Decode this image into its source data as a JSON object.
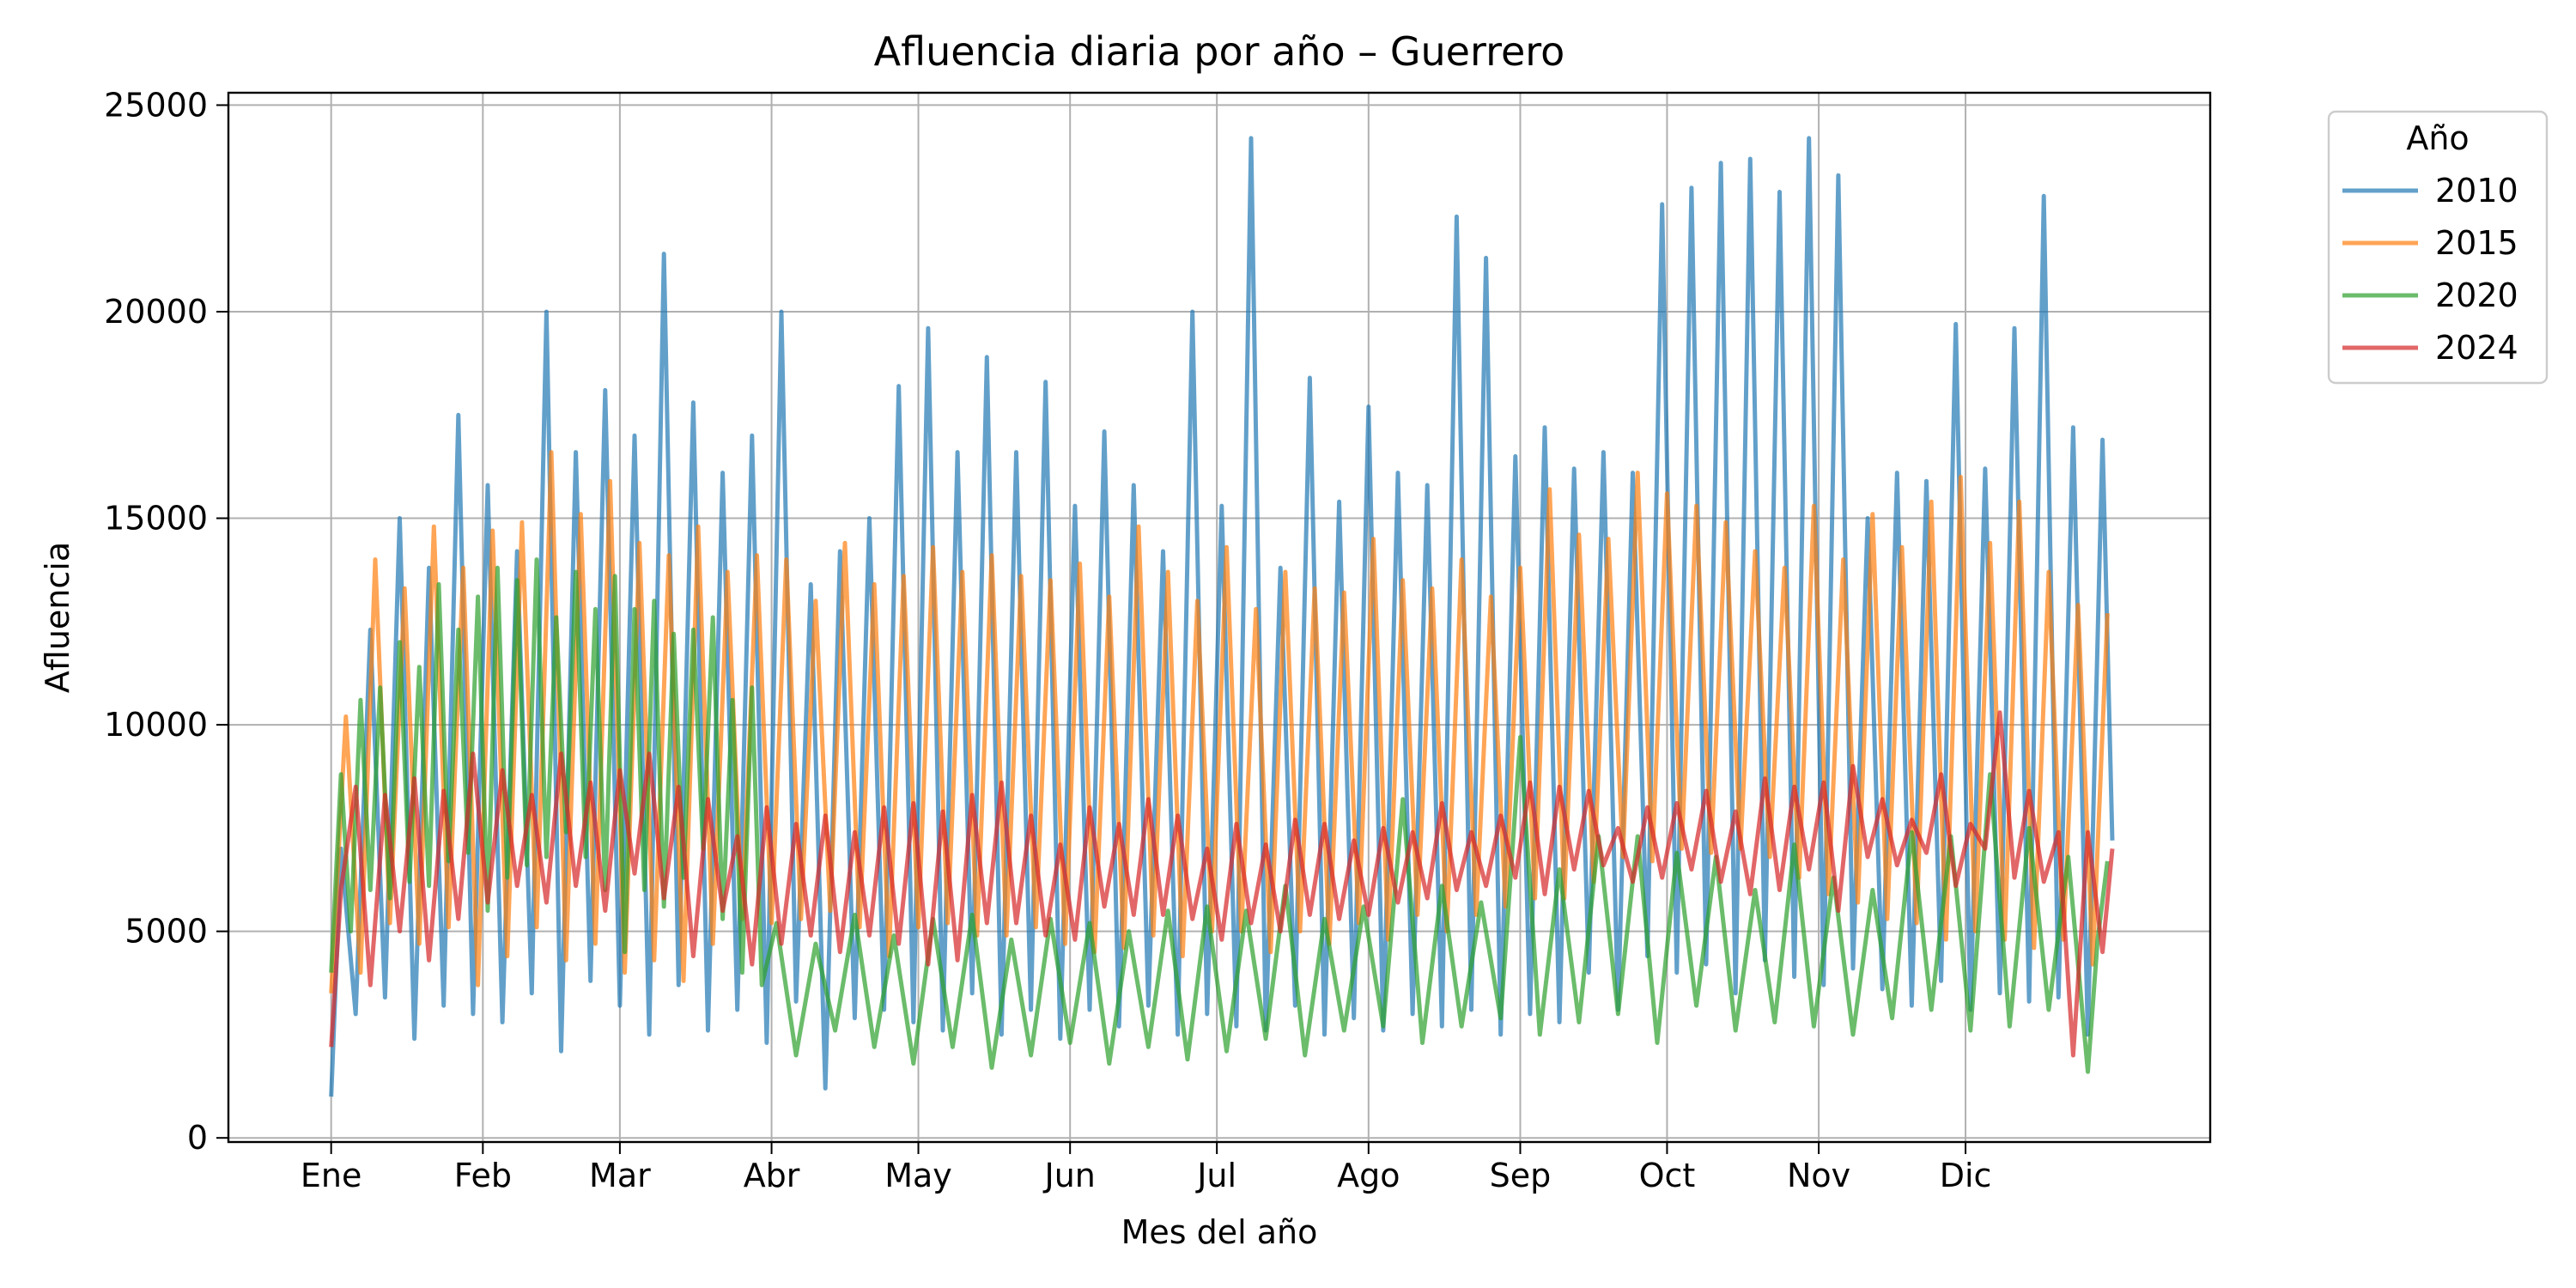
{
  "chart_data": {
    "type": "line",
    "title": "Afluencia diaria por año – Guerrero",
    "xlabel": "Mes del año",
    "ylabel": "Afluencia",
    "x_unit": "day_of_year",
    "xlim": [
      -20,
      385
    ],
    "ylim": [
      -100,
      25300
    ],
    "x_ticks": [
      {
        "day": 1,
        "label": "Ene"
      },
      {
        "day": 32,
        "label": "Feb"
      },
      {
        "day": 60,
        "label": "Mar"
      },
      {
        "day": 91,
        "label": "Abr"
      },
      {
        "day": 121,
        "label": "May"
      },
      {
        "day": 152,
        "label": "Jun"
      },
      {
        "day": 182,
        "label": "Jul"
      },
      {
        "day": 213,
        "label": "Ago"
      },
      {
        "day": 244,
        "label": "Sep"
      },
      {
        "day": 274,
        "label": "Oct"
      },
      {
        "day": 305,
        "label": "Nov"
      },
      {
        "day": 335,
        "label": "Dic"
      }
    ],
    "y_ticks": [
      0,
      5000,
      10000,
      15000,
      20000,
      25000
    ],
    "grid": true,
    "legend": {
      "title": "Año",
      "placement": "outside-top-right"
    },
    "series": [
      {
        "name": "2010",
        "color": "#1f77b4",
        "opacity": 0.7,
        "x": [
          1,
          3,
          6,
          9,
          12,
          15,
          18,
          21,
          24,
          27,
          30,
          33,
          36,
          39,
          42,
          45,
          48,
          51,
          54,
          57,
          60,
          63,
          66,
          69,
          72,
          75,
          78,
          81,
          84,
          87,
          90,
          93,
          96,
          99,
          102,
          105,
          108,
          111,
          114,
          117,
          120,
          123,
          126,
          129,
          132,
          135,
          138,
          141,
          144,
          147,
          150,
          153,
          156,
          159,
          162,
          165,
          168,
          171,
          174,
          177,
          180,
          183,
          186,
          189,
          192,
          195,
          198,
          201,
          204,
          207,
          210,
          213,
          216,
          219,
          222,
          225,
          228,
          231,
          234,
          237,
          240,
          243,
          246,
          249,
          252,
          255,
          258,
          261,
          264,
          267,
          270,
          273,
          276,
          279,
          282,
          285,
          288,
          291,
          294,
          297,
          300,
          303,
          306,
          309,
          312,
          315,
          318,
          321,
          324,
          327,
          330,
          333,
          336,
          339,
          342,
          345,
          348,
          351,
          354,
          357,
          360,
          363,
          365
        ],
        "values": [
          1000,
          7000,
          3000,
          12300,
          3400,
          15000,
          2400,
          13800,
          3200,
          17500,
          3000,
          15800,
          2800,
          14200,
          3500,
          20000,
          2100,
          16600,
          3800,
          18100,
          3200,
          17000,
          2500,
          21400,
          3700,
          17800,
          2600,
          16100,
          3100,
          17000,
          2300,
          20000,
          3300,
          13400,
          1200,
          14200,
          2900,
          15000,
          3100,
          18200,
          2800,
          19600,
          2600,
          16600,
          3500,
          18900,
          2500,
          16600,
          3100,
          18300,
          2400,
          15300,
          3100,
          17100,
          2700,
          15800,
          3200,
          14200,
          2500,
          20000,
          3000,
          15300,
          2700,
          24200,
          2600,
          13800,
          3200,
          18400,
          2500,
          15400,
          2900,
          17700,
          2600,
          16100,
          3000,
          15800,
          2700,
          22300,
          3100,
          21300,
          2500,
          16500,
          3000,
          17200,
          2800,
          16200,
          4000,
          16600,
          3100,
          16100,
          4400,
          22600,
          4000,
          23000,
          4200,
          23600,
          3500,
          23700,
          4300,
          22900,
          3900,
          24200,
          3700,
          23300,
          4100,
          15000,
          3600,
          16100,
          3200,
          15900,
          3800,
          19700,
          3100,
          16200,
          3500,
          19600,
          3300,
          22800,
          3400,
          17200,
          2500,
          16900,
          7200
        ]
      },
      {
        "name": "2015",
        "color": "#ff7f0e",
        "opacity": 0.7,
        "x": [
          1,
          4,
          7,
          10,
          13,
          16,
          19,
          22,
          25,
          28,
          31,
          34,
          37,
          40,
          43,
          46,
          49,
          52,
          55,
          58,
          61,
          64,
          67,
          70,
          73,
          76,
          79,
          82,
          85,
          88,
          91,
          94,
          97,
          100,
          103,
          106,
          109,
          112,
          115,
          118,
          121,
          124,
          127,
          130,
          133,
          136,
          139,
          142,
          145,
          148,
          151,
          154,
          157,
          160,
          163,
          166,
          169,
          172,
          175,
          178,
          181,
          184,
          187,
          190,
          193,
          196,
          199,
          202,
          205,
          208,
          211,
          214,
          217,
          220,
          223,
          226,
          229,
          232,
          235,
          238,
          241,
          244,
          247,
          250,
          253,
          256,
          259,
          262,
          265,
          268,
          271,
          274,
          277,
          280,
          283,
          286,
          289,
          292,
          295,
          298,
          301,
          304,
          307,
          310,
          313,
          316,
          319,
          322,
          325,
          328,
          331,
          334,
          337,
          340,
          343,
          346,
          349,
          352,
          355,
          358,
          361,
          364
        ],
        "values": [
          3500,
          10200,
          4000,
          14000,
          5200,
          13300,
          4700,
          14800,
          5100,
          13800,
          3700,
          14700,
          4400,
          14900,
          5100,
          16600,
          4300,
          15100,
          4700,
          15900,
          4000,
          14400,
          4300,
          14100,
          3800,
          14800,
          4700,
          13700,
          5300,
          14100,
          5200,
          14000,
          5300,
          13000,
          5500,
          14400,
          5100,
          13400,
          4400,
          13600,
          5100,
          14300,
          5200,
          13700,
          4900,
          14100,
          4900,
          13600,
          5100,
          13500,
          4700,
          13900,
          4500,
          13100,
          4600,
          14800,
          4900,
          13700,
          4400,
          13000,
          5000,
          14300,
          5000,
          12800,
          4500,
          13700,
          5000,
          13300,
          4700,
          13200,
          5200,
          14500,
          4800,
          13500,
          5400,
          13300,
          5000,
          14000,
          5400,
          13100,
          5600,
          13800,
          5800,
          15700,
          5800,
          14600,
          6200,
          14500,
          6800,
          16100,
          6700,
          15600,
          7000,
          15300,
          6900,
          14900,
          7000,
          14200,
          6800,
          13800,
          6300,
          15300,
          5900,
          14000,
          5700,
          15100,
          5300,
          14300,
          5200,
          15400,
          4800,
          16000,
          5000,
          14400,
          4800,
          15400,
          4600,
          13700,
          4800,
          12900,
          4200,
          12700
        ]
      },
      {
        "name": "2020",
        "color": "#2ca02c",
        "opacity": 0.7,
        "x": [
          1,
          3,
          5,
          7,
          9,
          11,
          13,
          15,
          17,
          19,
          21,
          23,
          25,
          27,
          29,
          31,
          33,
          35,
          37,
          39,
          41,
          43,
          45,
          47,
          49,
          51,
          53,
          55,
          57,
          59,
          61,
          63,
          65,
          67,
          69,
          71,
          73,
          75,
          77,
          79,
          81,
          83,
          85,
          87,
          89,
          92,
          96,
          100,
          104,
          108,
          112,
          116,
          120,
          124,
          128,
          132,
          136,
          140,
          144,
          148,
          152,
          156,
          160,
          164,
          168,
          172,
          176,
          180,
          184,
          188,
          192,
          196,
          200,
          204,
          208,
          212,
          216,
          220,
          224,
          228,
          232,
          236,
          240,
          244,
          248,
          252,
          256,
          260,
          264,
          268,
          272,
          276,
          280,
          284,
          288,
          292,
          296,
          300,
          304,
          308,
          312,
          316,
          320,
          324,
          328,
          332,
          336,
          340,
          344,
          348,
          352,
          356,
          360,
          362,
          364
        ],
        "values": [
          4000,
          8800,
          5000,
          10600,
          6000,
          10900,
          5800,
          12000,
          6200,
          11400,
          6100,
          13400,
          6700,
          12300,
          6900,
          13100,
          5500,
          13800,
          6300,
          13500,
          6600,
          14000,
          6800,
          12600,
          7400,
          13700,
          6800,
          12800,
          6000,
          13600,
          4500,
          12800,
          6000,
          13000,
          5600,
          12200,
          6300,
          12300,
          7000,
          12600,
          5300,
          10600,
          4000,
          10900,
          3700,
          5200,
          2000,
          4700,
          2600,
          5400,
          2200,
          4900,
          1800,
          5300,
          2200,
          5400,
          1700,
          4800,
          2000,
          5300,
          2300,
          5200,
          1800,
          5000,
          2200,
          5500,
          1900,
          5600,
          2100,
          5500,
          2400,
          6100,
          2000,
          5300,
          2600,
          5600,
          2700,
          8200,
          2300,
          6100,
          2700,
          5700,
          2900,
          9700,
          2500,
          6500,
          2800,
          7300,
          3000,
          7300,
          2300,
          6900,
          3200,
          6800,
          2600,
          6000,
          2800,
          7100,
          2700,
          6300,
          2500,
          6000,
          2900,
          7400,
          3100,
          7300,
          2600,
          8800,
          2700,
          7500,
          3100,
          6800,
          1600,
          4800,
          6700
        ]
      },
      {
        "name": "2024",
        "color": "#d62728",
        "opacity": 0.7,
        "x": [
          1,
          3,
          6,
          9,
          12,
          15,
          18,
          21,
          24,
          27,
          30,
          33,
          36,
          39,
          42,
          45,
          48,
          51,
          54,
          57,
          60,
          63,
          66,
          69,
          72,
          75,
          78,
          81,
          84,
          87,
          90,
          93,
          96,
          99,
          102,
          105,
          108,
          111,
          114,
          117,
          120,
          123,
          126,
          129,
          132,
          135,
          138,
          141,
          144,
          147,
          150,
          153,
          156,
          159,
          162,
          165,
          168,
          171,
          174,
          177,
          180,
          183,
          186,
          189,
          192,
          195,
          198,
          201,
          204,
          207,
          210,
          213,
          216,
          219,
          222,
          225,
          228,
          231,
          234,
          237,
          240,
          243,
          246,
          249,
          252,
          255,
          258,
          261,
          264,
          267,
          270,
          273,
          276,
          279,
          282,
          285,
          288,
          291,
          294,
          297,
          300,
          303,
          306,
          309,
          312,
          315,
          318,
          321,
          324,
          327,
          330,
          333,
          336,
          339,
          342,
          345,
          348,
          351,
          354,
          357,
          360,
          363,
          365
        ],
        "values": [
          2200,
          6000,
          8500,
          3700,
          8300,
          5000,
          8700,
          4300,
          8400,
          5300,
          9300,
          5700,
          8900,
          6100,
          8300,
          5700,
          9300,
          6100,
          8600,
          5500,
          8900,
          6400,
          9300,
          5800,
          8500,
          4400,
          8200,
          5500,
          7300,
          4200,
          8000,
          4700,
          7600,
          4900,
          7800,
          4500,
          7400,
          4900,
          8000,
          4700,
          8100,
          4200,
          7900,
          4300,
          8300,
          5200,
          8600,
          5200,
          7800,
          4900,
          7100,
          4800,
          8000,
          5600,
          7600,
          5400,
          8200,
          5400,
          7800,
          5300,
          7000,
          4800,
          7600,
          5200,
          7100,
          5000,
          7700,
          5400,
          7600,
          5300,
          7200,
          5400,
          7500,
          5700,
          7400,
          5800,
          8100,
          6000,
          7400,
          6100,
          7800,
          6300,
          8600,
          5900,
          8500,
          6500,
          8400,
          6600,
          7500,
          6200,
          8000,
          6300,
          8100,
          6500,
          8400,
          6200,
          7900,
          5900,
          8700,
          6000,
          8500,
          6500,
          8600,
          5500,
          9000,
          6800,
          8200,
          6600,
          7700,
          6900,
          8800,
          6100,
          7600,
          7000,
          10300,
          6300,
          8400,
          6200,
          7400,
          2000,
          7400,
          4500,
          7000
        ]
      }
    ]
  }
}
